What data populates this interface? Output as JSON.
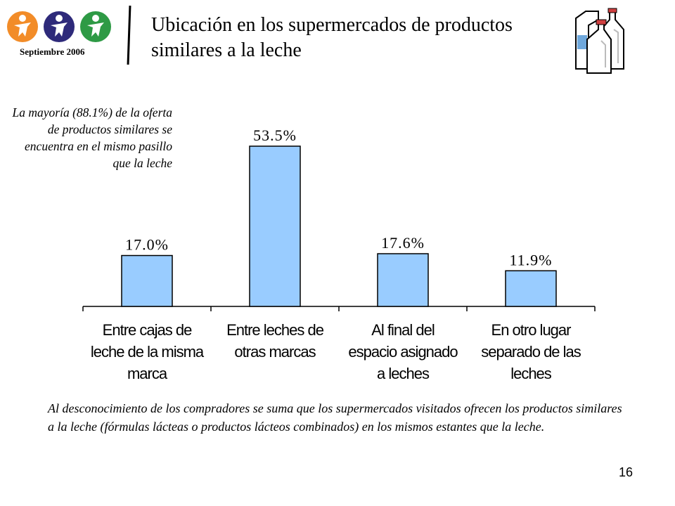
{
  "header": {
    "date": "Septiembre 2006",
    "title_line1": "Ubicación en los supermercados de productos",
    "title_line2": "similares a la leche"
  },
  "notes": {
    "side": "La mayoría (88.1%) de la oferta de productos similares se encuentra en el mismo pasillo que la leche",
    "bottom": "Al desconocimiento de los compradores se suma que los supermercados visitados ofrecen los productos similares a la leche (fórmulas lácteas o productos lácteos combinados) en los mismos estantes que la leche."
  },
  "page_number": "16",
  "chart_data": {
    "type": "bar",
    "categories": [
      [
        "Entre cajas de",
        "leche de la misma",
        "marca"
      ],
      [
        "Entre leches de",
        "otras marcas"
      ],
      [
        "Al final del",
        "espacio asignado",
        "a leches"
      ],
      [
        "En otro lugar",
        "separado de las",
        "leches"
      ]
    ],
    "values": [
      17.0,
      53.5,
      17.6,
      11.9
    ],
    "value_labels": [
      "17.0%",
      "53.5%",
      "17.6%",
      "11.9%"
    ],
    "ylim": [
      0,
      60
    ],
    "grid": false,
    "legend": "none",
    "bar_color": "#99ccff",
    "bar_border_color": "#000000"
  }
}
